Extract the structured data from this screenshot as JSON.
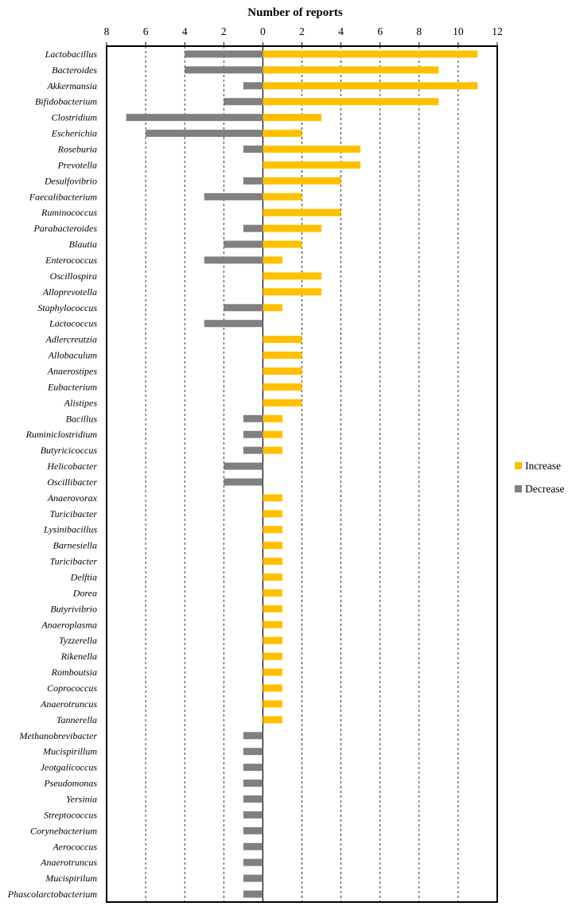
{
  "chart_data": {
    "type": "bar",
    "orientation": "horizontal",
    "title": "Number of reports",
    "x_ticks": [
      "8",
      "6",
      "4",
      "2",
      "0",
      "2",
      "4",
      "6",
      "8",
      "10",
      "12"
    ],
    "xlim": [
      -8,
      12
    ],
    "grid": true,
    "legend_position": "right",
    "colors": {
      "increase": "#FFC000",
      "decrease": "#808080"
    },
    "categories": [
      "Lactobacillus",
      "Bacteroides",
      "Akkermansia",
      "Bifidobacterium",
      "Clostridium",
      "Escherichia",
      "Roseburia",
      "Prevotella",
      "Desulfovibrio",
      "Faecalibacterium",
      "Ruminococcus",
      "Parabacteroides",
      "Blautia",
      "Enterococcus",
      "Oscillospira",
      "Alloprevotella",
      "Staphylococcus",
      "Lactococcus",
      "Adlercreutzia",
      "Allobaculum",
      "Anaerostipes",
      "Eubacterium",
      "Alistipes",
      "Bacillus",
      "Ruminiclostridium",
      "Butyricicoccus",
      "Helicobacter",
      "Oscillibacter",
      "Anaerovorax",
      "Turicibacter",
      "Lysinibacillus",
      "Barnesiella",
      "Turicibacter",
      "Delftia",
      "Dorea",
      "Butyrivibrio",
      "Anaeroplasma",
      "Tyzzerella",
      "Rikenella",
      "Romboutsia",
      "Coprococcus",
      "Anaerotruncus",
      "Tannerella",
      "Methanobrevibacter",
      "Mucispirillum",
      "Jeotgalicoccus",
      "Pseudomonas",
      "Yersinia",
      "Streptococcus",
      "Corynebacterium",
      "Aerococcus",
      "Anaerotruncus",
      "Mucispirilum",
      "Phascolarctobacterium"
    ],
    "series": [
      {
        "name": "Increase",
        "values": [
          11,
          9,
          11,
          9,
          3,
          2,
          5,
          5,
          4,
          2,
          4,
          3,
          2,
          1,
          3,
          3,
          1,
          0,
          2,
          2,
          2,
          2,
          2,
          1,
          1,
          1,
          0,
          0,
          1,
          1,
          1,
          1,
          1,
          1,
          1,
          1,
          1,
          1,
          1,
          1,
          1,
          1,
          1,
          0,
          0,
          0,
          0,
          0,
          0,
          0,
          0,
          0,
          0,
          0
        ]
      },
      {
        "name": "Decrease",
        "values": [
          4,
          4,
          1,
          2,
          7,
          6,
          1,
          0,
          1,
          3,
          0,
          1,
          2,
          3,
          0,
          0,
          2,
          3,
          0,
          0,
          0,
          0,
          0,
          1,
          1,
          1,
          2,
          2,
          0,
          0,
          0,
          0,
          0,
          0,
          0,
          0,
          0,
          0,
          0,
          0,
          0,
          0,
          0,
          1,
          1,
          1,
          1,
          1,
          1,
          1,
          1,
          1,
          1,
          1
        ]
      }
    ]
  }
}
